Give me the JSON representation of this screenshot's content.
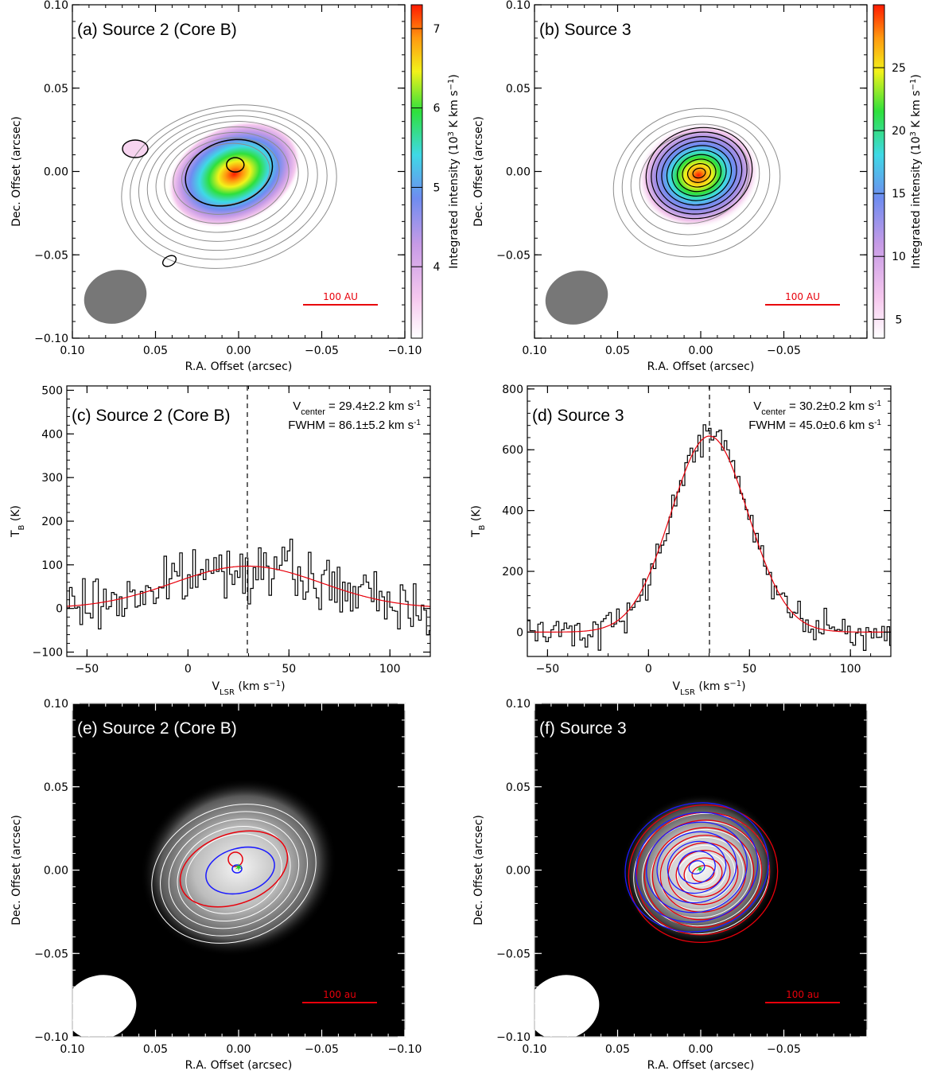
{
  "colors": {
    "line": "#000000",
    "fit": "#e8000b",
    "scalebar": "#e8000b",
    "gray_contour": "#8c8c8c",
    "beam_gray": "#777777",
    "red_contour": "#e8000b",
    "blue_contour": "#1a1aff",
    "green_marker": "#1fd11f"
  },
  "chart_data": [
    {
      "id": "a",
      "type": "heatmap",
      "title": "(a) Source 2 (Core B)",
      "xlabel": "R.A. Offset (arcsec)",
      "ylabel": "Dec. Offset (arcsec)",
      "xlim": [
        0.1,
        -0.1
      ],
      "ylim": [
        -0.1,
        0.1
      ],
      "xticks": [
        "0.10",
        "0.05",
        "0.00",
        "−0.05",
        "−0.10"
      ],
      "yticks": [
        "−0.10",
        "−0.05",
        "0.00",
        "0.05",
        "0.10"
      ],
      "colorbar": {
        "label": "Integrated intensity (10",
        "label_sup": "3",
        "label_rest": " K km s",
        "label_sup2": "−1",
        "label_end": ")",
        "range": [
          3.1,
          7.3
        ],
        "ticks": [
          "4",
          "5",
          "6",
          "7"
        ],
        "tick_values": [
          4,
          5,
          6,
          7
        ]
      },
      "peak": {
        "x": 0.002,
        "y": 0.004
      },
      "scalebar_label": "100 AU"
    },
    {
      "id": "b",
      "type": "heatmap",
      "title": "(b) Source 3",
      "xlabel": "R.A. Offset (arcsec)",
      "ylabel": "Dec. Offset (arcsec)",
      "xlim": [
        0.1,
        -0.1
      ],
      "ylim": [
        -0.1,
        0.1
      ],
      "xticks": [
        "0.10",
        "0.05",
        "0.00",
        "−0.05"
      ],
      "yticks": [
        "−0.05",
        "0.00",
        "0.05",
        "0.10"
      ],
      "colorbar": {
        "label": "Integrated intensity (10",
        "label_sup": "3",
        "label_rest": " K km s",
        "label_sup2": "−1",
        "label_end": ")",
        "range": [
          3.5,
          30
        ],
        "ticks": [
          "5",
          "10",
          "15",
          "20",
          "25"
        ],
        "tick_values": [
          5,
          10,
          15,
          20,
          25
        ]
      },
      "peak": {
        "x": 0.0,
        "y": 0.0
      },
      "scalebar_label": "100 AU"
    },
    {
      "id": "c",
      "type": "line",
      "title": "(c) Source 2 (Core B)",
      "xlabel": "V",
      "xlabel_sub": "LSR",
      "xlabel_rest": " (km s",
      "xlabel_sup": "−1",
      "xlabel_end": ")",
      "ylabel": "T",
      "ylabel_sub": "B",
      "ylabel_rest": " (K)",
      "xlim": [
        -60,
        120
      ],
      "ylim": [
        -110,
        510
      ],
      "xticks": [
        "−50",
        "0",
        "50",
        "100"
      ],
      "xtick_values": [
        -50,
        0,
        50,
        100
      ],
      "yticks": [
        "−100",
        "0",
        "100",
        "200",
        "300",
        "400",
        "500"
      ],
      "ytick_values": [
        -100,
        0,
        100,
        200,
        300,
        400,
        500
      ],
      "fit": {
        "amplitude": 97,
        "center": 29.4,
        "fwhm": 86.1
      },
      "vcenter_text": "V",
      "vcenter_sub": "center",
      "vcenter_val": " = 29.4±2.2 km s",
      "vcenter_sup": "-1",
      "fwhm_text": "FWHM = 86.1±5.2 km s",
      "fwhm_sup": "-1"
    },
    {
      "id": "d",
      "type": "line",
      "title": "(d) Source 3",
      "xlabel": "V",
      "xlabel_sub": "LSR",
      "xlabel_rest": " (km s",
      "xlabel_sup": "−1",
      "xlabel_end": ")",
      "ylabel": "T",
      "ylabel_sub": "B",
      "ylabel_rest": " (K)",
      "xlim": [
        -60,
        120
      ],
      "ylim": [
        -80,
        810
      ],
      "xticks": [
        "−50",
        "0",
        "50",
        "100"
      ],
      "xtick_values": [
        -50,
        0,
        50,
        100
      ],
      "yticks": [
        "0",
        "200",
        "400",
        "600",
        "800"
      ],
      "ytick_values": [
        0,
        200,
        400,
        600,
        800
      ],
      "fit": {
        "amplitude": 645,
        "center": 30.2,
        "fwhm": 45.0
      },
      "vcenter_text": "V",
      "vcenter_sub": "center",
      "vcenter_val": " = 30.2±0.2 km s",
      "vcenter_sup": "-1",
      "fwhm_text": "FWHM = 45.0±0.6 km s",
      "fwhm_sup": "-1"
    },
    {
      "id": "e",
      "type": "heatmap",
      "title": "(e) Source 2 (Core B)",
      "xlabel": "R.A. Offset (arcsec)",
      "ylabel": "Dec. Offset (arcsec)",
      "xlim": [
        0.1,
        -0.1
      ],
      "ylim": [
        -0.1,
        0.1
      ],
      "xticks": [
        "0.10",
        "0.05",
        "0.00",
        "−0.05",
        "−0.10"
      ],
      "yticks": [
        "−0.10",
        "−0.05",
        "0.00",
        "0.05",
        "0.10"
      ],
      "scalebar_label": "100 au"
    },
    {
      "id": "f",
      "type": "heatmap",
      "title": "(f) Source 3",
      "xlabel": "R.A. Offset (arcsec)",
      "ylabel": "Dec. Offset (arcsec)",
      "xlim": [
        0.1,
        -0.1
      ],
      "ylim": [
        -0.1,
        0.1
      ],
      "xticks": [
        "0.10",
        "0.05",
        "0.00",
        "−0.05"
      ],
      "yticks": [
        "−0.10",
        "−0.05",
        "0.00",
        "0.05",
        "0.10"
      ],
      "scalebar_label": "100 au"
    }
  ]
}
